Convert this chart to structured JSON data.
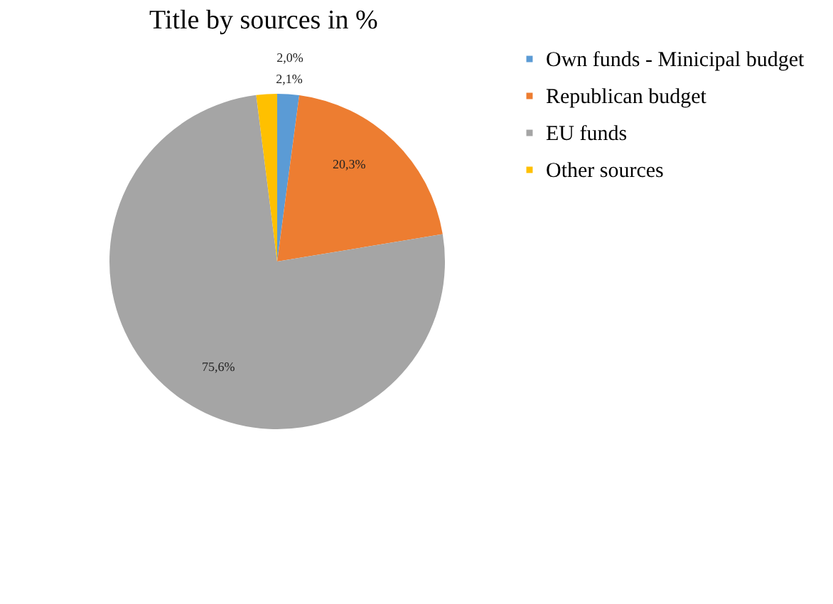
{
  "chart_data": {
    "type": "pie",
    "title": "Title by sources in %",
    "categories": [
      "Own funds - Minicipal budget",
      "Republican budget",
      "EU funds",
      "Other sources"
    ],
    "values": [
      2.1,
      20.3,
      75.6,
      2.0
    ],
    "colors": [
      "#5b9bd5",
      "#ed7d31",
      "#a5a5a5",
      "#ffc000"
    ],
    "value_labels": [
      "2,1%",
      "20,3%",
      "75,6%",
      "2,0%"
    ],
    "legend": "right"
  }
}
